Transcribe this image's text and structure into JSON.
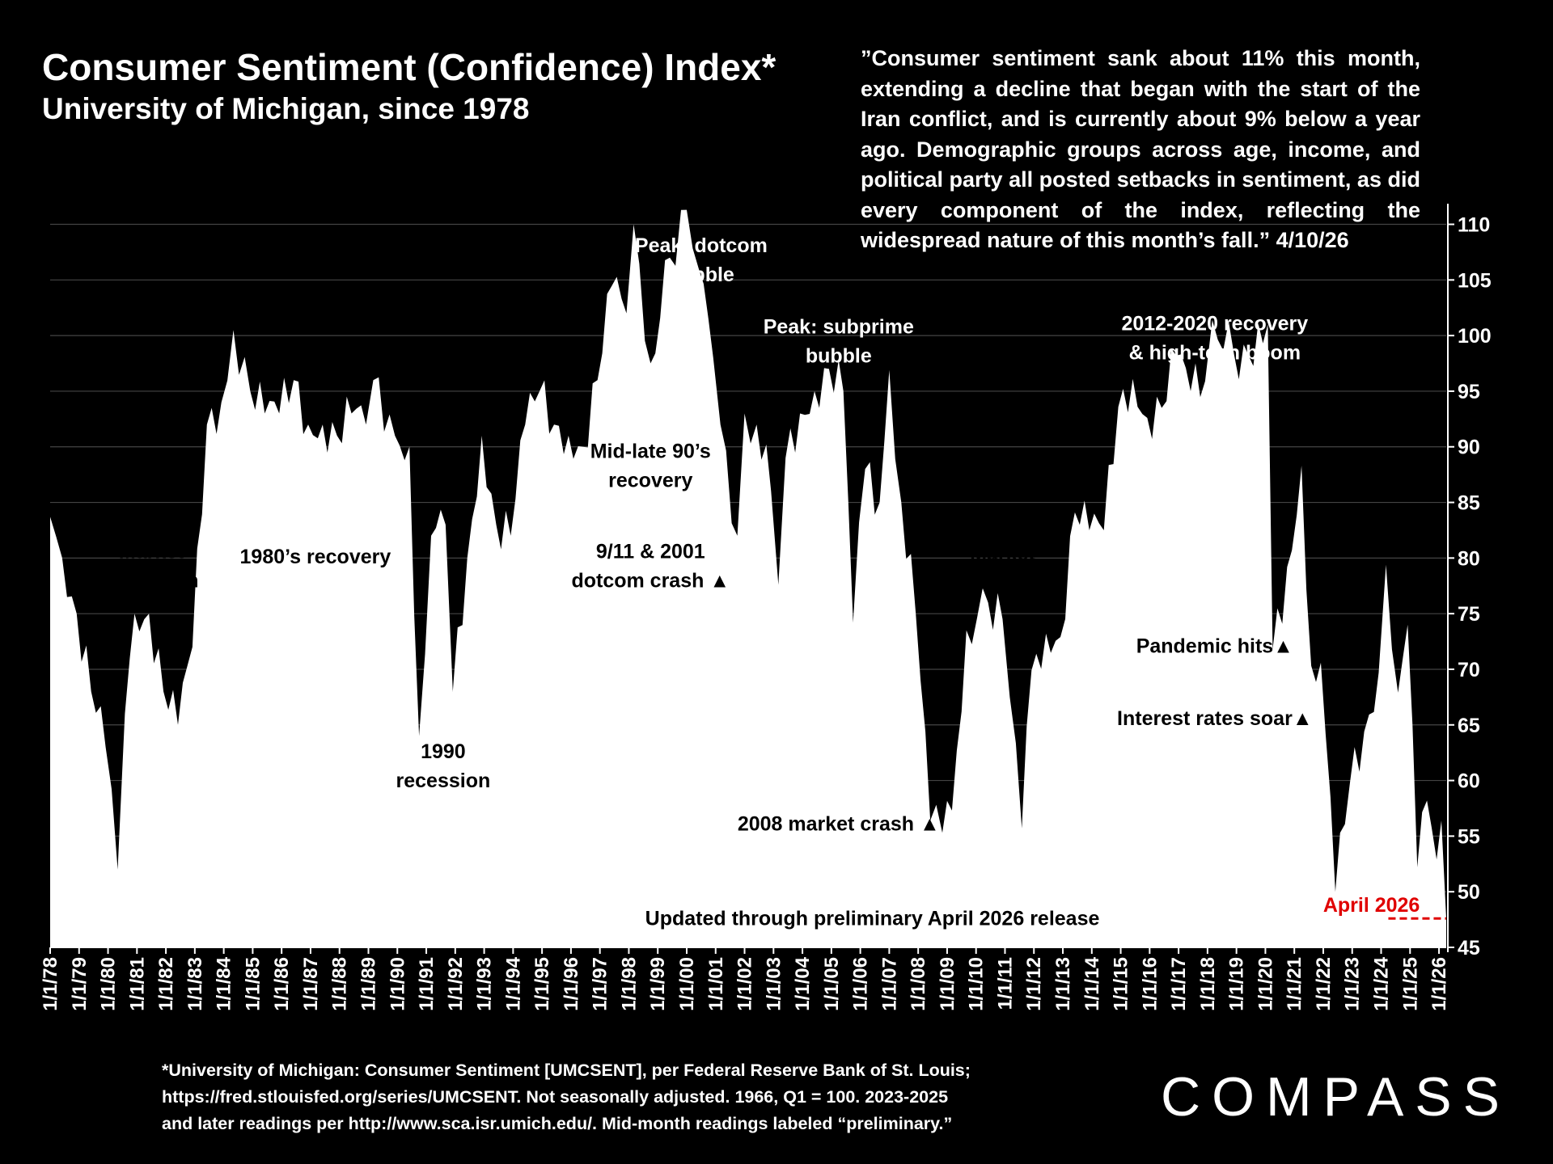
{
  "title": "Consumer Sentiment (Confidence) Index*",
  "subtitle": "University of Michigan, since 1978",
  "quote": "”Consumer sentiment sank about 11% this month, extending a decline that began with the start of the Iran conflict, and is currently about 9% below a year ago. Demographic groups across age, income, and political party all posted setbacks in sentiment, as did every component of the index, reflecting the widespread nature of this month’s fall.” 4/10/26",
  "footnote_lines": [
    "*University of Michigan: Consumer Sentiment [UMCSENT], per Federal Reserve Bank of St. Louis;",
    "https://fred.stlouisfed.org/series/UMCSENT. Not seasonally adjusted. 1966, Q1 = 100.  2023-2025",
    "and later readings per http://www.sca.isr.umich.edu/.  Mid-month readings labeled “preliminary.”"
  ],
  "brand": "COMPASS",
  "chart_data": {
    "type": "area",
    "title": "Consumer Sentiment (Confidence) Index*",
    "subtitle": "University of Michigan, since 1978",
    "ylim": [
      45,
      112
    ],
    "yticks": [
      45,
      50,
      55,
      60,
      65,
      70,
      75,
      80,
      85,
      90,
      95,
      100,
      105,
      110
    ],
    "x_axis_labels": [
      "1/1/78",
      "1/1/79",
      "1/1/80",
      "1/1/81",
      "1/1/82",
      "1/1/83",
      "1/1/84",
      "1/1/85",
      "1/1/86",
      "1/1/87",
      "1/1/88",
      "1/1/89",
      "1/1/90",
      "1/1/91",
      "1/1/92",
      "1/1/93",
      "1/1/94",
      "1/1/95",
      "1/1/96",
      "1/1/97",
      "1/1/98",
      "1/1/99",
      "1/1/00",
      "1/1/01",
      "1/1/02",
      "1/1/03",
      "1/1/04",
      "1/1/05",
      "1/1/06",
      "1/1/07",
      "1/1/08",
      "1/1/09",
      "1/1/10",
      "1/1/11",
      "1/1/12",
      "1/1/13",
      "1/1/14",
      "1/1/15",
      "1/1/16",
      "1/1/17",
      "1/1/18",
      "1/1/19",
      "1/1/20",
      "1/1/21",
      "1/1/22",
      "1/1/23",
      "1/1/24",
      "1/1/25",
      "1/1/26"
    ],
    "x_range": [
      "1978-01",
      "2026-04"
    ],
    "grid": "horizontal",
    "fill_color": "#ffffff",
    "background_color": "#000000",
    "reference_color": "#e00000",
    "series": [
      {
        "points": [
          [
            "1978-01",
            83.7
          ],
          [
            "1978-06",
            80.0
          ],
          [
            "1978-12",
            75.0
          ],
          [
            "1979-06",
            68.0
          ],
          [
            "1979-12",
            63.0
          ],
          [
            "1980-05",
            52.0
          ],
          [
            "1980-08",
            66.0
          ],
          [
            "1980-12",
            75.0
          ],
          [
            "1981-06",
            75.0
          ],
          [
            "1981-12",
            68.0
          ],
          [
            "1982-06",
            65.0
          ],
          [
            "1982-12",
            72.0
          ],
          [
            "1983-06",
            92.0
          ],
          [
            "1983-12",
            94.0
          ],
          [
            "1984-05",
            100.5
          ],
          [
            "1984-12",
            95.0
          ],
          [
            "1985-06",
            93.0
          ],
          [
            "1985-12",
            93.0
          ],
          [
            "1986-06",
            96.0
          ],
          [
            "1986-12",
            92.0
          ],
          [
            "1987-06",
            92.0
          ],
          [
            "1987-12",
            91.0
          ],
          [
            "1988-06",
            93.0
          ],
          [
            "1988-12",
            92.0
          ],
          [
            "1989-03",
            96.0
          ],
          [
            "1989-12",
            91.0
          ],
          [
            "1990-06",
            90.0
          ],
          [
            "1990-10",
            64.0
          ],
          [
            "1991-03",
            82.0
          ],
          [
            "1991-09",
            83.0
          ],
          [
            "1991-12",
            68.0
          ],
          [
            "1992-06",
            80.0
          ],
          [
            "1992-12",
            91.0
          ],
          [
            "1993-06",
            83.0
          ],
          [
            "1993-12",
            82.0
          ],
          [
            "1994-06",
            92.0
          ],
          [
            "1994-12",
            95.0
          ],
          [
            "1995-06",
            92.0
          ],
          [
            "1995-12",
            91.0
          ],
          [
            "1996-06",
            90.0
          ],
          [
            "1996-12",
            96.0
          ],
          [
            "1997-06",
            104.5
          ],
          [
            "1997-12",
            102.0
          ],
          [
            "1998-03",
            110.0
          ],
          [
            "1998-10",
            97.5
          ],
          [
            "1999-06",
            107.0
          ],
          [
            "2000-01",
            111.3
          ],
          [
            "2000-06",
            106.0
          ],
          [
            "2000-12",
            98.0
          ],
          [
            "2001-03",
            92.0
          ],
          [
            "2001-10",
            82.0
          ],
          [
            "2002-01",
            93.0
          ],
          [
            "2002-06",
            92.0
          ],
          [
            "2002-12",
            86.0
          ],
          [
            "2003-03",
            77.6
          ],
          [
            "2003-06",
            89.0
          ],
          [
            "2003-12",
            93.0
          ],
          [
            "2004-06",
            95.0
          ],
          [
            "2004-12",
            97.0
          ],
          [
            "2005-06",
            95.0
          ],
          [
            "2005-10",
            74.2
          ],
          [
            "2006-03",
            88.0
          ],
          [
            "2006-09",
            85.0
          ],
          [
            "2007-01",
            96.9
          ],
          [
            "2007-06",
            85.0
          ],
          [
            "2007-12",
            75.0
          ],
          [
            "2008-06",
            56.4
          ],
          [
            "2008-11",
            55.3
          ],
          [
            "2009-03",
            57.3
          ],
          [
            "2009-09",
            73.5
          ],
          [
            "2010-06",
            76.0
          ],
          [
            "2010-12",
            74.5
          ],
          [
            "2011-03",
            67.5
          ],
          [
            "2011-08",
            55.7
          ],
          [
            "2011-12",
            69.9
          ],
          [
            "2012-06",
            73.2
          ],
          [
            "2012-12",
            72.9
          ],
          [
            "2013-06",
            84.1
          ],
          [
            "2013-12",
            82.5
          ],
          [
            "2014-06",
            82.5
          ],
          [
            "2014-12",
            93.6
          ],
          [
            "2015-06",
            96.1
          ],
          [
            "2015-12",
            92.6
          ],
          [
            "2016-06",
            93.5
          ],
          [
            "2016-12",
            98.2
          ],
          [
            "2017-06",
            95.0
          ],
          [
            "2017-12",
            95.9
          ],
          [
            "2018-03",
            101.4
          ],
          [
            "2018-12",
            98.3
          ],
          [
            "2019-06",
            98.2
          ],
          [
            "2019-12",
            99.3
          ],
          [
            "2020-02",
            101.0
          ],
          [
            "2020-04",
            71.8
          ],
          [
            "2020-12",
            80.7
          ],
          [
            "2021-04",
            88.3
          ],
          [
            "2021-08",
            70.3
          ],
          [
            "2021-12",
            70.6
          ],
          [
            "2022-06",
            50.0
          ],
          [
            "2022-12",
            59.7
          ],
          [
            "2023-06",
            64.4
          ],
          [
            "2023-12",
            69.7
          ],
          [
            "2024-03",
            79.4
          ],
          [
            "2024-08",
            67.9
          ],
          [
            "2024-12",
            74.0
          ],
          [
            "2025-04",
            52.2
          ],
          [
            "2025-08",
            58.2
          ],
          [
            "2025-12",
            52.9
          ],
          [
            "2026-02",
            56.4
          ],
          [
            "2026-04",
            47.6
          ]
        ]
      }
    ],
    "annotations": [
      {
        "text": "Market recession",
        "x": "1981-07",
        "y": 80.0
      },
      {
        "text": "1980’s recovery",
        "x": "1987-03",
        "y": 79.5
      },
      {
        "text": "1990 recession",
        "x": "1991-08",
        "y": 62.0
      },
      {
        "text": "Peak: dotcom bubble",
        "x": "2000-07",
        "y": 107.5
      },
      {
        "text": "Mid-late 90’s recovery",
        "x": "1998-10",
        "y": 89.0
      },
      {
        "text": "9/11 & 2001 dotcom crash ▲",
        "x": "1998-10",
        "y": 80.0
      },
      {
        "text": "Peak: subprime bubble",
        "x": "2005-04",
        "y": 100.2
      },
      {
        "text": "Market recession",
        "x": "2010-12",
        "y": 79.8
      },
      {
        "text": "2008 market crash ▲",
        "x": "2005-04",
        "y": 55.5
      },
      {
        "text": "2012-2020 recovery & high-tech boom",
        "x": "2018-04",
        "y": 100.5
      },
      {
        "text": "Pandemic hits ▲",
        "x": "2018-04",
        "y": 71.5
      },
      {
        "text": "Interest rates soar ▲",
        "x": "2018-04",
        "y": 65.0
      },
      {
        "text": "Updated through preliminary April 2026 release",
        "x": "2006-06",
        "y": 47.0
      },
      {
        "text": "April 2026",
        "x": "2023-09",
        "y": 48.2
      }
    ],
    "reference_line": {
      "label": "April 2026",
      "y": 47.6,
      "style": "dashed"
    }
  }
}
